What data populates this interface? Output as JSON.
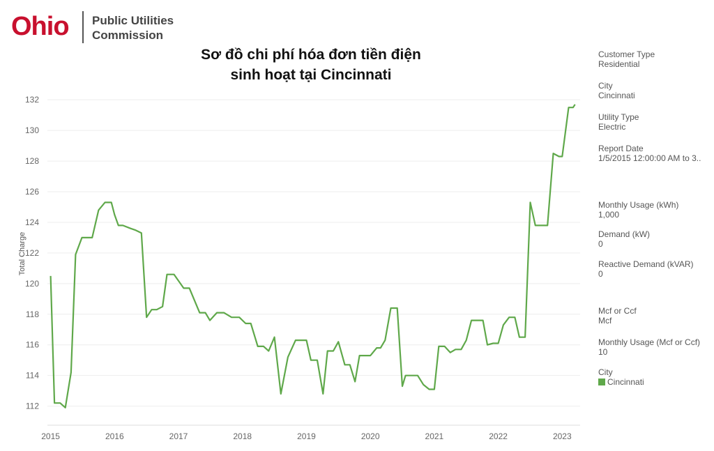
{
  "logo": {
    "wordmark": "Ohio",
    "line1": "Public Utilities",
    "line2": "Commission"
  },
  "filters": [
    {
      "label": "Customer Type",
      "value": "Residential"
    },
    {
      "label": "City",
      "value": "Cincinnati"
    },
    {
      "label": "Utility Type",
      "value": "Electric"
    },
    {
      "label": "Report Date",
      "value": "1/5/2015 12:00:00 AM to 3.."
    },
    {
      "label": "Monthly Usage (kWh)",
      "value": "1,000"
    },
    {
      "label": "Demand (kW)",
      "value": "0"
    },
    {
      "label": "Reactive Demand (kVAR)",
      "value": "0"
    },
    {
      "label": "Mcf or Ccf",
      "value": "Mcf"
    },
    {
      "label": "Monthly Usage (Mcf or Ccf)",
      "value": "10"
    }
  ],
  "legend": {
    "title": "City",
    "item": "Cincinnati",
    "color": "#5fa84a"
  },
  "chart_data": {
    "type": "line",
    "title_lines": [
      "Sơ đồ chi phí hóa đơn tiền điện",
      "sinh hoạt tại Cincinnati"
    ],
    "xlabel": "",
    "ylabel": "Total Charge",
    "xlim": [
      2014.95,
      2023.28
    ],
    "ylim": [
      111.3,
      132.6
    ],
    "x_ticks": [
      2015,
      2016,
      2017,
      2018,
      2019,
      2020,
      2021,
      2022,
      2023
    ],
    "y_ticks": [
      112,
      114,
      116,
      118,
      120,
      122,
      124,
      126,
      128,
      130,
      132
    ],
    "grid": "horizontal",
    "series": [
      {
        "name": "Cincinnati",
        "color": "#5fa84a",
        "x": [
          2015.0,
          2015.06,
          2015.15,
          2015.23,
          2015.32,
          2015.39,
          2015.49,
          2015.65,
          2015.75,
          2015.85,
          2015.95,
          2016.0,
          2016.06,
          2016.13,
          2016.25,
          2016.32,
          2016.42,
          2016.5,
          2016.58,
          2016.66,
          2016.75,
          2016.82,
          2016.93,
          2017.08,
          2017.17,
          2017.33,
          2017.42,
          2017.49,
          2017.6,
          2017.71,
          2017.83,
          2017.95,
          2018.05,
          2018.13,
          2018.24,
          2018.33,
          2018.41,
          2018.5,
          2018.6,
          2018.71,
          2018.83,
          2018.92,
          2019.0,
          2019.07,
          2019.17,
          2019.26,
          2019.33,
          2019.42,
          2019.5,
          2019.6,
          2019.68,
          2019.76,
          2019.83,
          2019.92,
          2020.0,
          2020.1,
          2020.16,
          2020.23,
          2020.32,
          2020.42,
          2020.5,
          2020.55,
          2020.65,
          2020.74,
          2020.83,
          2020.92,
          2021.0,
          2021.07,
          2021.16,
          2021.25,
          2021.33,
          2021.42,
          2021.5,
          2021.58,
          2021.67,
          2021.76,
          2021.83,
          2021.92,
          2022.0,
          2022.08,
          2022.17,
          2022.26,
          2022.33,
          2022.42,
          2022.5,
          2022.58,
          2022.67,
          2022.77,
          2022.86,
          2022.95,
          2023.0,
          2023.1,
          2023.17,
          2023.2
        ],
        "y": [
          120.5,
          112.2,
          112.2,
          111.9,
          114.2,
          121.9,
          123.0,
          123.0,
          124.8,
          125.3,
          125.3,
          124.5,
          123.8,
          123.8,
          123.6,
          123.5,
          123.3,
          117.8,
          118.3,
          118.3,
          118.5,
          120.6,
          120.6,
          119.7,
          119.7,
          118.1,
          118.1,
          117.6,
          118.1,
          118.1,
          117.8,
          117.8,
          117.4,
          117.4,
          115.9,
          115.9,
          115.6,
          116.5,
          112.8,
          115.2,
          116.3,
          116.3,
          116.3,
          115.0,
          115.0,
          112.8,
          115.6,
          115.6,
          116.2,
          114.7,
          114.7,
          113.6,
          115.3,
          115.3,
          115.3,
          115.8,
          115.8,
          116.3,
          118.4,
          118.4,
          113.3,
          114.0,
          114.0,
          114.0,
          113.4,
          113.1,
          113.1,
          115.9,
          115.9,
          115.5,
          115.7,
          115.7,
          116.3,
          117.6,
          117.6,
          117.6,
          116.0,
          116.1,
          116.1,
          117.3,
          117.8,
          117.8,
          116.5,
          116.5,
          125.3,
          123.8,
          123.8,
          123.8,
          128.5,
          128.3,
          128.3,
          131.5,
          131.5,
          131.7
        ]
      }
    ]
  }
}
